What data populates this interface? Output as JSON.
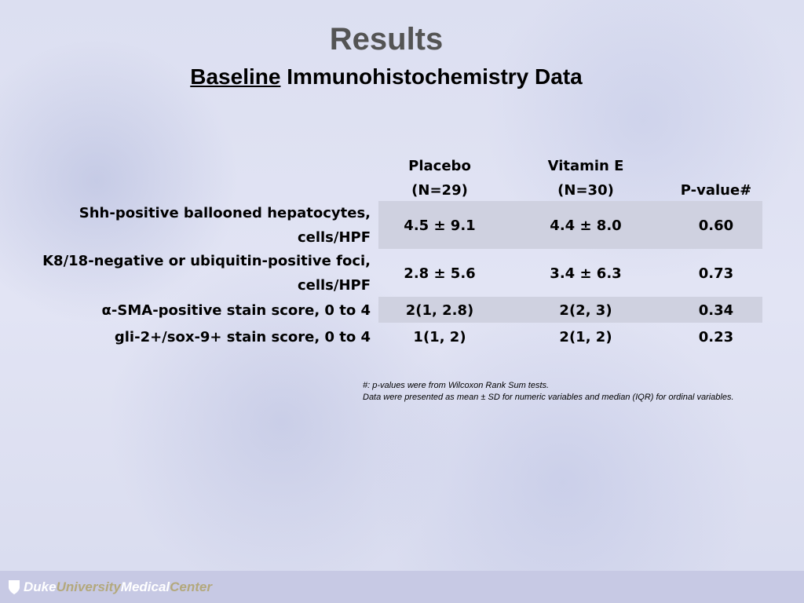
{
  "slide": {
    "title": "Results",
    "subtitle_underlined": "Baseline",
    "subtitle_rest": " Immunohistochemistry Data"
  },
  "table": {
    "headers": {
      "placebo": "Placebo",
      "placebo_n": "(N=29)",
      "vitamin_e": "Vitamin E",
      "vitamin_e_n": "(N=30)",
      "p_value": "P-value#"
    },
    "rows": [
      {
        "label_line1": "Shh-positive ballooned hepatocytes,",
        "label_line2": "cells/HPF",
        "placebo": "4.5 ± 9.1",
        "vitamin_e": "4.4 ± 8.0",
        "p_value": "0.60"
      },
      {
        "label_line1": "K8/18-negative or ubiquitin-positive foci,",
        "label_line2": "cells/HPF",
        "placebo": "2.8 ± 5.6",
        "vitamin_e": "3.4 ± 6.3",
        "p_value": "0.73"
      },
      {
        "label_line1": "α-SMA-positive stain score, 0 to 4",
        "placebo": "2(1, 2.8)",
        "vitamin_e": "2(2, 3)",
        "p_value": "0.34"
      },
      {
        "label_line1": "gli-2+/sox-9+ stain score, 0 to 4",
        "placebo": "1(1, 2)",
        "vitamin_e": "2(1, 2)",
        "p_value": "0.23"
      }
    ]
  },
  "notes": {
    "line1": "#: p-values were from Wilcoxon Rank Sum tests.",
    "line2": "Data were presented as mean ± SD for numeric variables and median (IQR) for ordinal variables."
  },
  "footer": {
    "logo_part1": "Duke",
    "logo_part2": "University",
    "logo_part3": "Medical",
    "logo_part4": "Center"
  },
  "colors": {
    "band": "#cfd1e0",
    "footer": "#c7c9e4",
    "logo_tan": "#b3a87c",
    "title": "#545454"
  }
}
